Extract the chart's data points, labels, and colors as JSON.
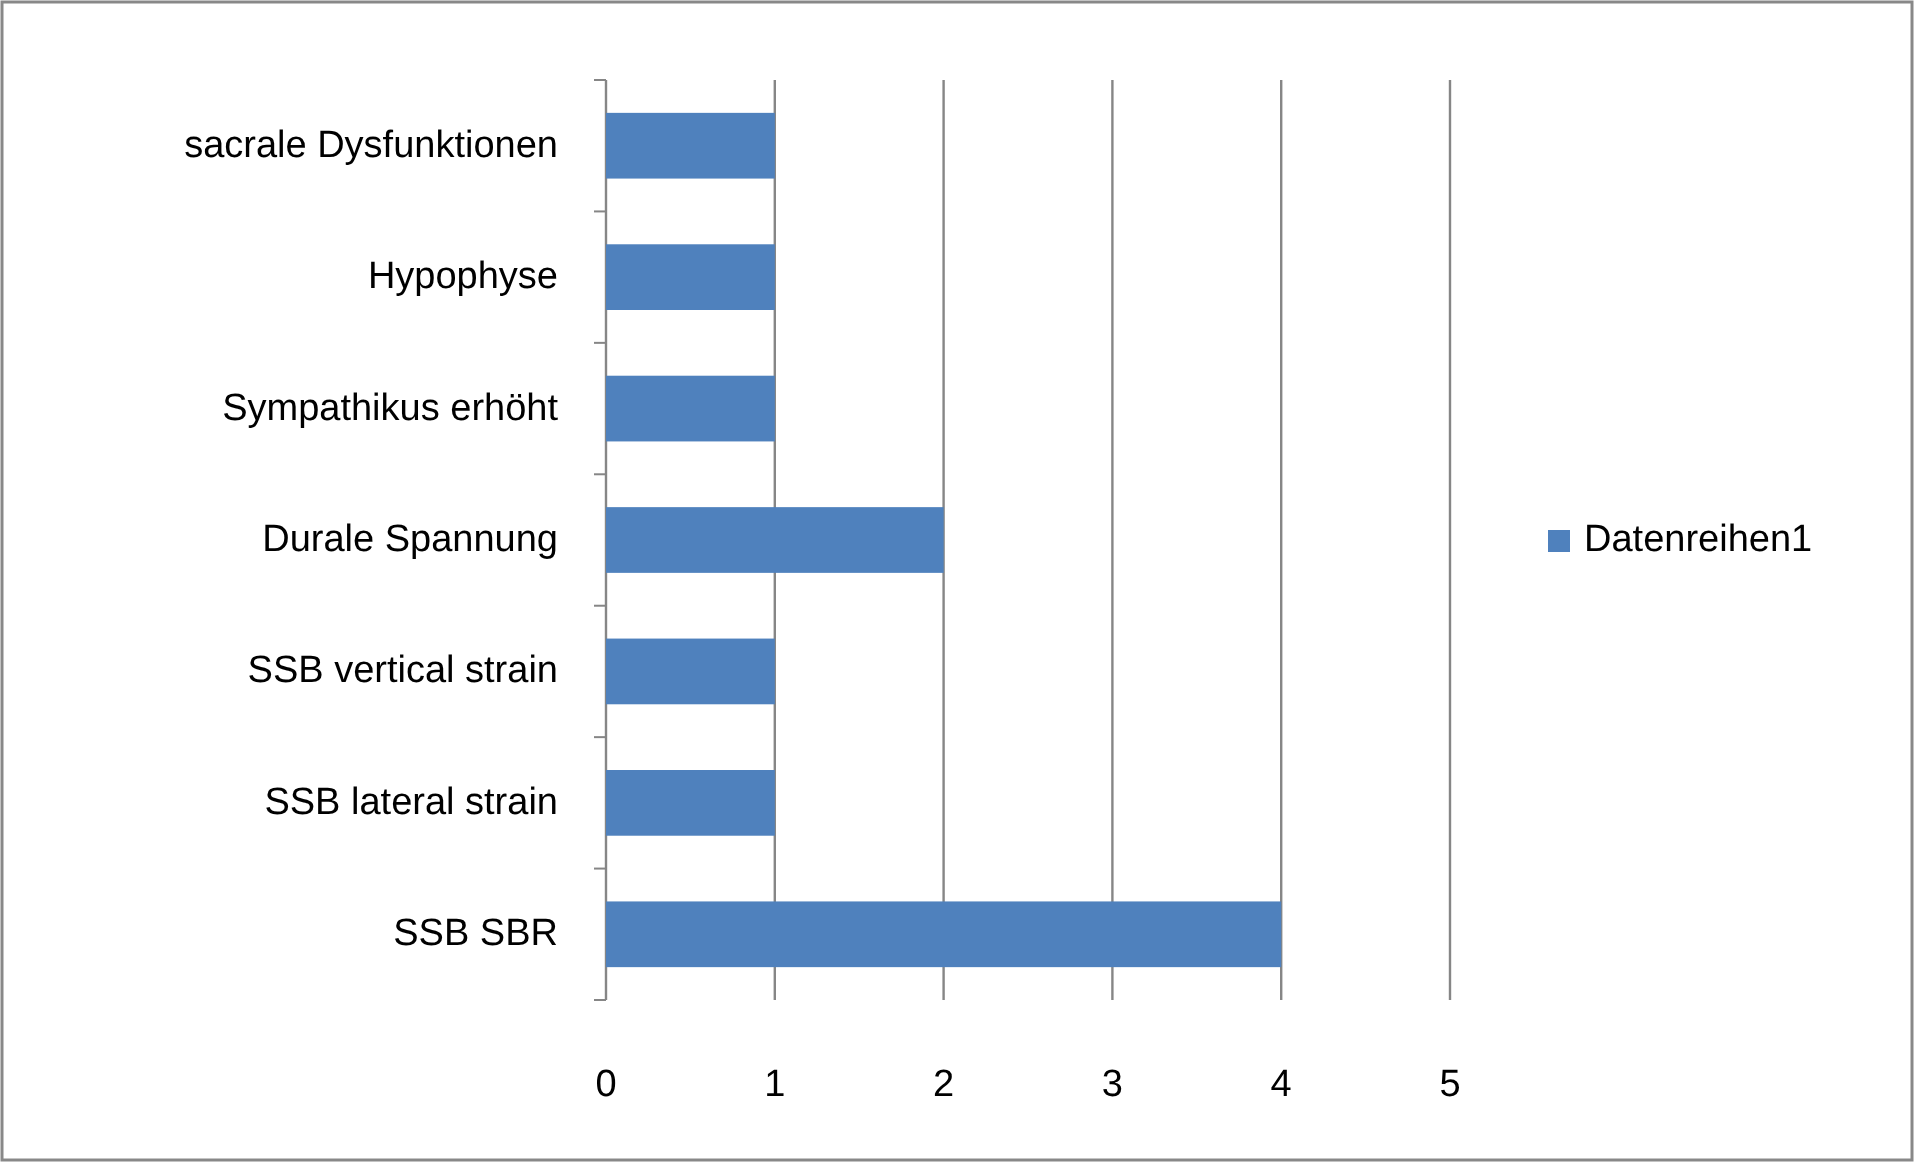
{
  "chart_data": {
    "type": "bar",
    "orientation": "horizontal",
    "categories": [
      "sacrale Dysfunktionen",
      "Hypophyse",
      "Sympathikus erhöht",
      "Durale Spannung",
      "SSB vertical strain",
      "SSB lateral strain",
      "SSB SBR"
    ],
    "series": [
      {
        "name": "Datenreihen1",
        "color": "#4f81bd",
        "values": [
          1,
          1,
          1,
          2,
          1,
          1,
          4
        ]
      }
    ],
    "xlim": [
      0,
      5
    ],
    "xticks": [
      0,
      1,
      2,
      3,
      4,
      5
    ],
    "grid": "x",
    "legend": "right"
  }
}
